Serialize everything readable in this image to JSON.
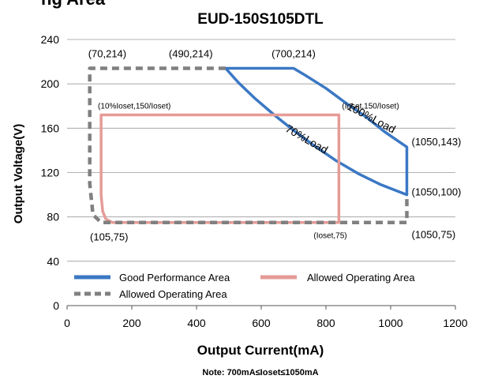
{
  "header_fragment": "ng Area",
  "chart_data": {
    "type": "line",
    "title": "EUD-150S105DTL",
    "xlabel": "Output Current(mA)",
    "ylabel": "Output Voltage(V)",
    "xlim": [
      0,
      1200
    ],
    "ylim": [
      0,
      240
    ],
    "x_ticks": [
      0,
      200,
      400,
      600,
      800,
      1000,
      1200
    ],
    "y_ticks": [
      0,
      40,
      80,
      120,
      160,
      200,
      240
    ],
    "grid": "horizontal",
    "note": "Note:  700mA≤Ioset≤1050mA",
    "colors": {
      "good": "#3b78c4",
      "allowed_ioset": "#e59b97",
      "allowed_max": "#808080"
    },
    "legend": [
      {
        "label": "Good Performance Area",
        "style": "solid",
        "color": "#3b78c4"
      },
      {
        "label": "Allowed Operating Area",
        "style": "solid",
        "color": "#e59b97"
      },
      {
        "label": "Allowed Operating Area",
        "style": "dashed",
        "color": "#808080"
      }
    ],
    "series": [
      {
        "name": "Good Performance Area",
        "style": "solid",
        "shape": "closed",
        "points": [
          [
            490,
            214
          ],
          [
            700,
            214
          ],
          [
            740,
            207
          ],
          [
            800,
            196
          ],
          [
            860,
            183
          ],
          [
            920,
            171
          ],
          [
            980,
            157
          ],
          [
            1050,
            143
          ],
          [
            1050,
            100
          ],
          [
            970,
            109
          ],
          [
            900,
            119
          ],
          [
            830,
            131
          ],
          [
            760,
            145
          ],
          [
            700,
            158
          ],
          [
            640,
            172
          ],
          [
            580,
            187
          ],
          [
            530,
            201
          ],
          [
            490,
            214
          ]
        ]
      },
      {
        "name": "Allowed Operating Area",
        "style": "solid",
        "shape": "closed",
        "points": [
          [
            105,
            172
          ],
          [
            840,
            172
          ],
          [
            840,
            75
          ],
          [
            140,
            75
          ],
          [
            120,
            78
          ],
          [
            110,
            85
          ],
          [
            105,
            100
          ],
          [
            105,
            172
          ]
        ]
      },
      {
        "name": "Allowed Operating Area",
        "style": "dashed",
        "shape": "closed",
        "points": [
          [
            70,
            214
          ],
          [
            490,
            214
          ],
          [
            490,
            214
          ],
          [
            70,
            214
          ],
          [
            70,
            214
          ]
        ]
      },
      {
        "name": "Allowed Operating Area",
        "style": "dashed",
        "shape": "open",
        "points": [
          [
            490,
            214
          ],
          [
            70,
            214
          ],
          [
            70,
            110
          ],
          [
            80,
            82
          ],
          [
            105,
            75
          ],
          [
            1050,
            75
          ],
          [
            1050,
            100
          ]
        ]
      }
    ],
    "annotations": [
      {
        "text": "(70,214)",
        "x": 70,
        "y": 214
      },
      {
        "text": "(490,214)",
        "x": 490,
        "y": 214
      },
      {
        "text": "(700,214)",
        "x": 700,
        "y": 214
      },
      {
        "text": "(10%Ioset,150/Ioset)",
        "x": 105,
        "y": 172
      },
      {
        "text": "(Ioset,150/Ioset)",
        "x": 840,
        "y": 172
      },
      {
        "text": "100%Load",
        "x": 930,
        "y": 165
      },
      {
        "text": "70%Load",
        "x": 720,
        "y": 150
      },
      {
        "text": "(1050,143)",
        "x": 1050,
        "y": 143
      },
      {
        "text": "(1050,100)",
        "x": 1050,
        "y": 100
      },
      {
        "text": "(105,75)",
        "x": 105,
        "y": 75
      },
      {
        "text": "(Ioset,75)",
        "x": 840,
        "y": 75
      },
      {
        "text": "(1050,75)",
        "x": 1050,
        "y": 75
      }
    ]
  }
}
